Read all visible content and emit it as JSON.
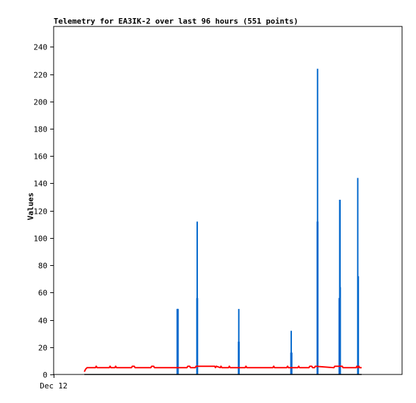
{
  "chart_data": {
    "type": "line",
    "title": "Telemetry for EA3IK-2 over last 96 hours (551 points)",
    "xlabel": "",
    "ylabel": "Values",
    "x_tick_labels": [
      "Dec 12"
    ],
    "ylim": [
      0,
      255
    ],
    "y_ticks": [
      0,
      20,
      40,
      60,
      80,
      100,
      120,
      140,
      160,
      180,
      200,
      220,
      240
    ],
    "xlim": [
      0,
      100
    ],
    "grid": false,
    "legend": "none",
    "series": [
      {
        "color": "#0066cc",
        "style": "spikes",
        "x": [
          33.5,
          33.6,
          33.7,
          33.8,
          40.6,
          40.7,
          40.8,
          55.6,
          55.7,
          55.8,
          74.5,
          74.6,
          74.7,
          74.8,
          84.0,
          84.1,
          84.2,
          91.9,
          92.0,
          92.1,
          92.2,
          92.3,
          98.6,
          98.7,
          98.8
        ],
        "values": [
          48,
          48,
          48,
          48,
          56,
          112,
          56,
          24,
          48,
          24,
          16,
          32,
          16,
          16,
          112,
          224,
          112,
          56,
          56,
          128,
          128,
          64,
          144,
          72,
          72
        ]
      },
      {
        "color": "#ff0000",
        "style": "line",
        "x": [
          0,
          0.5,
          1,
          4,
          4.3,
          4.6,
          9,
          9.3,
          9.6,
          11,
          11.3,
          11.6,
          17,
          17.3,
          18,
          18.3,
          24,
          24.3,
          25,
          25.3,
          37,
          37.3,
          38,
          38.3,
          40,
          40.3,
          47,
          47.3,
          47.6,
          49,
          49.3,
          49.6,
          52,
          52.3,
          52.6,
          58,
          58.3,
          58.6,
          68,
          68.3,
          68.6,
          73,
          73.3,
          73.6,
          77,
          77.3,
          77.6,
          81,
          81.3,
          82,
          82.3,
          83,
          83.3,
          90,
          90.3,
          93,
          93.3,
          98,
          98.3,
          98.6,
          99,
          99.3,
          100
        ],
        "values": [
          2,
          4,
          5,
          5,
          6,
          5,
          5,
          6,
          5,
          5,
          6,
          5,
          5,
          6,
          6,
          5,
          5,
          6,
          6,
          5,
          5,
          6,
          6,
          5,
          5,
          6,
          6,
          5,
          6,
          5,
          6,
          5,
          5,
          6,
          5,
          5,
          6,
          5,
          5,
          6,
          5,
          5,
          6,
          5,
          5,
          6,
          5,
          5,
          6,
          6,
          5,
          5,
          6,
          5,
          6,
          6,
          5,
          5,
          6,
          5,
          6,
          5,
          5
        ]
      },
      {
        "color": "#000000",
        "style": "line",
        "x": [
          0,
          100
        ],
        "values": [
          0,
          0
        ]
      }
    ]
  }
}
